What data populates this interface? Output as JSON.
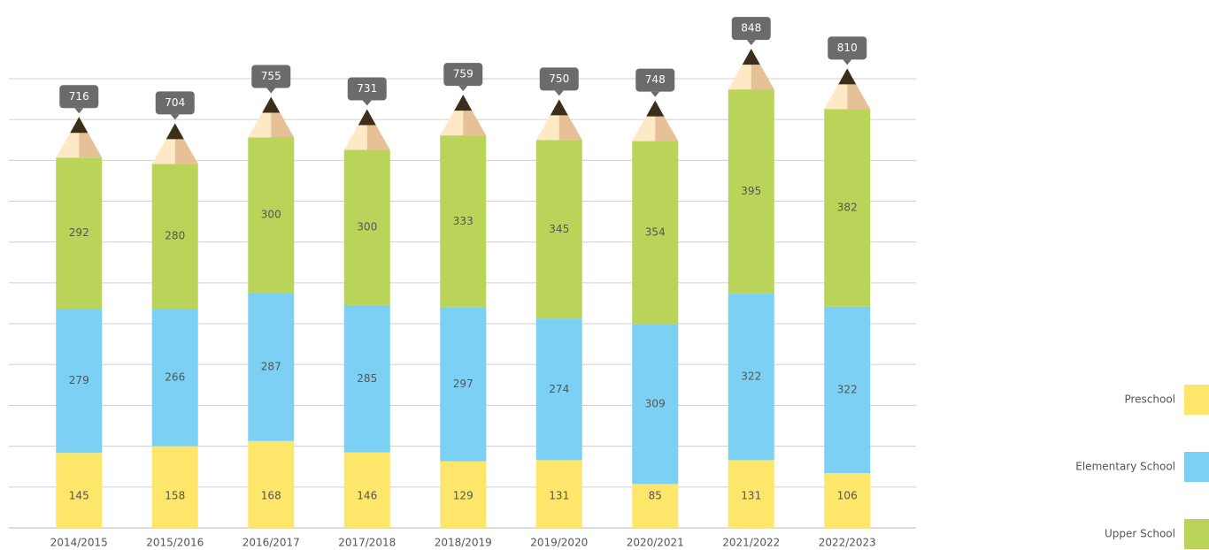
{
  "chart_data": {
    "type": "bar",
    "stacked": true,
    "categories": [
      "2014/2015",
      "2015/2016",
      "2016/2017",
      "2017/2018",
      "2018/2019",
      "2019/2020",
      "2020/2021",
      "2021/2022",
      "2022/2023"
    ],
    "series": [
      {
        "name": "Preschool",
        "color": "#fde66a",
        "values": [
          145,
          158,
          168,
          146,
          129,
          131,
          85,
          131,
          106
        ]
      },
      {
        "name": "Elementary School",
        "color": "#7bd0f4",
        "values": [
          279,
          266,
          287,
          285,
          297,
          274,
          309,
          322,
          322
        ]
      },
      {
        "name": "Upper School",
        "color": "#bad45a",
        "values": [
          292,
          280,
          300,
          300,
          333,
          345,
          354,
          395,
          382
        ]
      }
    ],
    "totals": [
      716,
      704,
      755,
      731,
      759,
      750,
      748,
      848,
      810
    ],
    "ylim": [
      0,
      867
    ],
    "grid": true
  }
}
